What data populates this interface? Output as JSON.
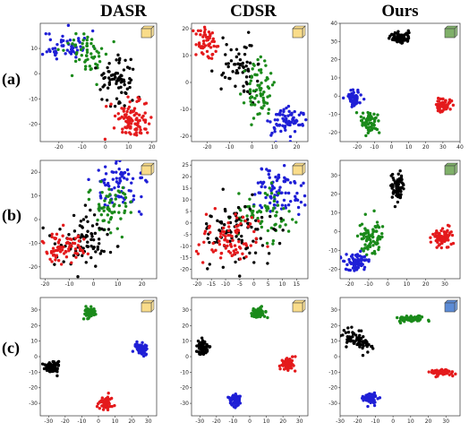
{
  "column_titles": [
    "DASR",
    "CDSR",
    "Ours"
  ],
  "row_labels": [
    "(a)",
    "(b)",
    "(c)"
  ],
  "colors": {
    "black": "#000000",
    "green": "#1a8a1a",
    "red": "#e41a1c",
    "blue": "#1f1fd6",
    "cube_yellow": "#f9dc8a",
    "cube_green": "#7fb069",
    "cube_blue": "#5b8bd6"
  },
  "chart_data": [
    {
      "type": "scatter",
      "row": "(a)",
      "method": "DASR",
      "cube": "yellow",
      "xlim": [
        -28,
        22
      ],
      "ylim": [
        -27,
        20
      ],
      "xticks": [
        -20,
        -10,
        0,
        10,
        20
      ],
      "yticks": [
        -20,
        -10,
        0,
        10
      ],
      "clusters": [
        {
          "color": "blue",
          "cx": -17,
          "cy": 11,
          "sx": 5,
          "sy": 3,
          "n": 55,
          "seed": 11
        },
        {
          "color": "green",
          "cx": -7,
          "cy": 8,
          "sx": 5,
          "sy": 4,
          "n": 55,
          "seed": 12
        },
        {
          "color": "black",
          "cx": 5,
          "cy": -3,
          "sx": 4,
          "sy": 5,
          "n": 75,
          "seed": 13
        },
        {
          "color": "red",
          "cx": 12,
          "cy": -18,
          "sx": 4,
          "sy": 4,
          "n": 95,
          "seed": 14
        }
      ]
    },
    {
      "type": "scatter",
      "row": "(a)",
      "method": "CDSR",
      "cube": "yellow",
      "xlim": [
        -27,
        25
      ],
      "ylim": [
        -22,
        22
      ],
      "xticks": [
        -20,
        -10,
        0,
        10,
        20
      ],
      "yticks": [
        -20,
        -10,
        0,
        10,
        20
      ],
      "clusters": [
        {
          "color": "red",
          "cx": -20,
          "cy": 14,
          "sx": 3,
          "sy": 3,
          "n": 55,
          "seed": 21
        },
        {
          "color": "black",
          "cx": -6,
          "cy": 6,
          "sx": 4,
          "sy": 5,
          "n": 60,
          "seed": 22
        },
        {
          "color": "green",
          "cx": 3,
          "cy": -3,
          "sx": 3,
          "sy": 5,
          "n": 70,
          "seed": 23
        },
        {
          "color": "blue",
          "cx": 15,
          "cy": -15,
          "sx": 4,
          "sy": 3,
          "n": 75,
          "seed": 24
        }
      ]
    },
    {
      "type": "scatter",
      "row": "(a)",
      "method": "Ours",
      "cube": "green",
      "xlim": [
        -30,
        40
      ],
      "ylim": [
        -25,
        40
      ],
      "xticks": [
        -20,
        -10,
        0,
        10,
        20,
        30,
        40
      ],
      "yticks": [
        -20,
        -10,
        0,
        10,
        20,
        30,
        40
      ],
      "clusters": [
        {
          "color": "black",
          "cx": 5,
          "cy": 32,
          "sx": 3,
          "sy": 1.6,
          "n": 70,
          "seed": 31
        },
        {
          "color": "blue",
          "cx": -22,
          "cy": -1,
          "sx": 2.2,
          "sy": 2.2,
          "n": 60,
          "seed": 32
        },
        {
          "color": "green",
          "cx": -13,
          "cy": -15,
          "sx": 2.5,
          "sy": 3,
          "n": 60,
          "seed": 33
        },
        {
          "color": "red",
          "cx": 30,
          "cy": -5,
          "sx": 2.5,
          "sy": 2,
          "n": 70,
          "seed": 34
        }
      ]
    },
    {
      "type": "scatter",
      "row": "(b)",
      "method": "DASR",
      "cube": "yellow",
      "xlim": [
        -22,
        26
      ],
      "ylim": [
        -25,
        25
      ],
      "xticks": [
        -20,
        -10,
        0,
        10,
        20
      ],
      "yticks": [
        -20,
        -10,
        0,
        10,
        20
      ],
      "clusters": [
        {
          "color": "blue",
          "cx": 12,
          "cy": 15,
          "sx": 6,
          "sy": 5,
          "n": 80,
          "seed": 41
        },
        {
          "color": "green",
          "cx": 6,
          "cy": 6,
          "sx": 5,
          "sy": 5,
          "n": 60,
          "seed": 42
        },
        {
          "color": "black",
          "cx": -5,
          "cy": -8,
          "sx": 7,
          "sy": 6,
          "n": 85,
          "seed": 43
        },
        {
          "color": "red",
          "cx": -13,
          "cy": -12,
          "sx": 5,
          "sy": 4,
          "n": 75,
          "seed": 44
        }
      ]
    },
    {
      "type": "scatter",
      "row": "(b)",
      "method": "CDSR",
      "cube": "yellow",
      "xlim": [
        -22,
        19
      ],
      "ylim": [
        -24,
        27
      ],
      "xticks": [
        -20,
        -15,
        -10,
        -5,
        0,
        5,
        10,
        15
      ],
      "yticks": [
        -20,
        -15,
        -10,
        -5,
        0,
        5,
        10,
        15,
        20,
        25
      ],
      "clusters": [
        {
          "color": "blue",
          "cx": 8,
          "cy": 14,
          "sx": 5,
          "sy": 5,
          "n": 85,
          "seed": 51
        },
        {
          "color": "green",
          "cx": 4,
          "cy": 3,
          "sx": 5,
          "sy": 6,
          "n": 65,
          "seed": 52
        },
        {
          "color": "black",
          "cx": -6,
          "cy": -3,
          "sx": 8,
          "sy": 7,
          "n": 95,
          "seed": 53
        },
        {
          "color": "red",
          "cx": -9,
          "cy": -6,
          "sx": 5,
          "sy": 6,
          "n": 85,
          "seed": 54
        }
      ]
    },
    {
      "type": "scatter",
      "row": "(b)",
      "method": "Ours",
      "cube": "green",
      "xlim": [
        -25,
        38
      ],
      "ylim": [
        -25,
        38
      ],
      "xticks": [
        -20,
        -10,
        0,
        10,
        20,
        30
      ],
      "yticks": [
        -20,
        -10,
        0,
        10,
        20,
        30
      ],
      "clusters": [
        {
          "color": "black",
          "cx": 5,
          "cy": 24,
          "sx": 1.8,
          "sy": 4.5,
          "n": 70,
          "seed": 61
        },
        {
          "color": "green",
          "cx": -9,
          "cy": -3,
          "sx": 2.8,
          "sy": 4,
          "n": 75,
          "seed": 62
        },
        {
          "color": "blue",
          "cx": -17,
          "cy": -16,
          "sx": 3,
          "sy": 2.6,
          "n": 70,
          "seed": 63
        },
        {
          "color": "red",
          "cx": 29,
          "cy": -3,
          "sx": 2.6,
          "sy": 2.6,
          "n": 75,
          "seed": 64
        }
      ]
    },
    {
      "type": "scatter",
      "row": "(c)",
      "method": "DASR",
      "cube": "yellow",
      "xlim": [
        -35,
        35
      ],
      "ylim": [
        -38,
        38
      ],
      "xticks": [
        -30,
        -20,
        -10,
        0,
        10,
        20,
        30
      ],
      "yticks": [
        -30,
        -20,
        -10,
        0,
        10,
        20,
        30
      ],
      "clusters": [
        {
          "color": "green",
          "cx": -5,
          "cy": 28,
          "sx": 1.8,
          "sy": 1.8,
          "n": 70,
          "seed": 71
        },
        {
          "color": "black",
          "cx": -28,
          "cy": -7,
          "sx": 2.2,
          "sy": 1.6,
          "n": 75,
          "seed": 72
        },
        {
          "color": "blue",
          "cx": 26,
          "cy": 5,
          "sx": 1.8,
          "sy": 1.8,
          "n": 70,
          "seed": 73
        },
        {
          "color": "red",
          "cx": 4,
          "cy": -30,
          "sx": 1.8,
          "sy": 2,
          "n": 75,
          "seed": 74
        }
      ]
    },
    {
      "type": "scatter",
      "row": "(c)",
      "method": "CDSR",
      "cube": "yellow",
      "xlim": [
        -35,
        35
      ],
      "ylim": [
        -38,
        38
      ],
      "xticks": [
        -30,
        -20,
        -10,
        0,
        10,
        20,
        30
      ],
      "yticks": [
        -30,
        -20,
        -10,
        0,
        10,
        20,
        30
      ],
      "clusters": [
        {
          "color": "green",
          "cx": 5,
          "cy": 28,
          "sx": 1.8,
          "sy": 1.8,
          "n": 70,
          "seed": 81
        },
        {
          "color": "black",
          "cx": -28,
          "cy": 6,
          "sx": 1.6,
          "sy": 2.2,
          "n": 70,
          "seed": 82
        },
        {
          "color": "red",
          "cx": 23,
          "cy": -5,
          "sx": 1.8,
          "sy": 2,
          "n": 75,
          "seed": 83
        },
        {
          "color": "blue",
          "cx": -9,
          "cy": -28,
          "sx": 1.8,
          "sy": 1.8,
          "n": 70,
          "seed": 84
        }
      ]
    },
    {
      "type": "scatter",
      "row": "(c)",
      "method": "Ours",
      "cube": "blue",
      "xlim": [
        -30,
        38
      ],
      "ylim": [
        -38,
        38
      ],
      "xticks": [
        -30,
        -20,
        -10,
        0,
        10,
        20,
        30
      ],
      "yticks": [
        -30,
        -20,
        -10,
        0,
        10,
        20,
        30
      ],
      "clusters": [
        {
          "color": "black",
          "cx": -20,
          "cy": 10,
          "sx": 2.2,
          "sy": 5,
          "n": 65,
          "seed": 91,
          "tilt": 0.9
        },
        {
          "color": "green",
          "cx": 10,
          "cy": 24,
          "sx": 5,
          "sy": 1,
          "n": 65,
          "seed": 92
        },
        {
          "color": "red",
          "cx": 28,
          "cy": -10,
          "sx": 4,
          "sy": 0.9,
          "n": 65,
          "seed": 93
        },
        {
          "color": "blue",
          "cx": -13,
          "cy": -27,
          "sx": 2,
          "sy": 1.6,
          "n": 60,
          "seed": 94
        }
      ]
    }
  ]
}
